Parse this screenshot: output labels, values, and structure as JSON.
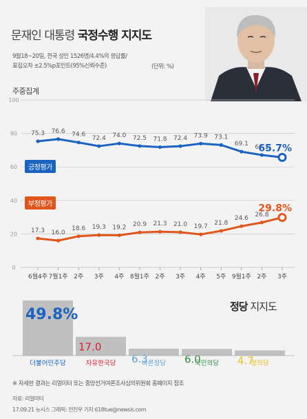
{
  "header": {
    "title_main": "문재인 대통령 ",
    "title_bold": "국정수행 지지도",
    "note_line1": "9월18~20일, 전국 성인 1526명/4.4%의 응답률/",
    "note_line2": "표집오차 ±2.5%p포인트(95%신뢰수준)",
    "unit": "(단위: %)",
    "subtitle": "주중집계"
  },
  "colors": {
    "positive": "#1a63c0",
    "negative": "#e0561c",
    "background": "#f3f3f3",
    "grid": "#c8c8c8",
    "party_bar": "#c0c0c0"
  },
  "chart_data": [
    {
      "type": "line",
      "x": [
        "6월4주",
        "7월1주",
        "2주",
        "3주",
        "4주",
        "8월1주",
        "2주",
        "3주",
        "4주",
        "5주",
        "9월1주",
        "2주",
        "3주"
      ],
      "ylim": [
        0,
        100
      ],
      "yticks": [
        0,
        20,
        40,
        60,
        80,
        100
      ],
      "grid": true,
      "series": [
        {
          "name": "긍정평가",
          "values": [
            75.3,
            76.6,
            74.6,
            72.4,
            74.0,
            72.5,
            71.8,
            72.4,
            73.9,
            73.1,
            69.1,
            67.1,
            65.7
          ],
          "labels": [
            "75.3",
            "76.6",
            "74.6",
            "72.4",
            "74.0",
            "72.5",
            "71.8",
            "72.4",
            "73.9",
            "73.1",
            "69.1",
            "67.1",
            "65.7%"
          ]
        },
        {
          "name": "부정평가",
          "values": [
            17.3,
            16.0,
            18.6,
            19.3,
            19.2,
            20.9,
            21.3,
            21.0,
            19.7,
            21.8,
            24.6,
            26.8,
            29.8
          ],
          "labels": [
            "17.3",
            "16.0",
            "18.6",
            "19.3",
            "19.2",
            "20.9",
            "21.3",
            "21.0",
            "19.7",
            "21.8",
            "24.6",
            "26.8",
            "29.8%"
          ]
        }
      ]
    },
    {
      "type": "bar",
      "title_bold": "정당",
      "title_rest": " 지지도",
      "categories": [
        "더불어민주당",
        "자유한국당",
        "바른정당",
        "국민의당",
        "정의당"
      ],
      "values": [
        49.8,
        17.0,
        6.3,
        6.0,
        4.7
      ],
      "value_labels": [
        "49.8%",
        "17.0",
        "6.3",
        "6.0",
        "4.7"
      ],
      "category_colors": [
        "#1a63c0",
        "#d81e32",
        "#5aa0d6",
        "#2e8b3e",
        "#e8c11a"
      ]
    }
  ],
  "footer": {
    "footnote": "※ 자세한 결과는 리얼미터 또는 중앙선거여론조사심의위원회 홈페이지 참조",
    "source": "자료: 리얼미터",
    "credit": "17.09.21 뉴시스 그래픽: 전진우 기자 618tue@newsis.com"
  }
}
